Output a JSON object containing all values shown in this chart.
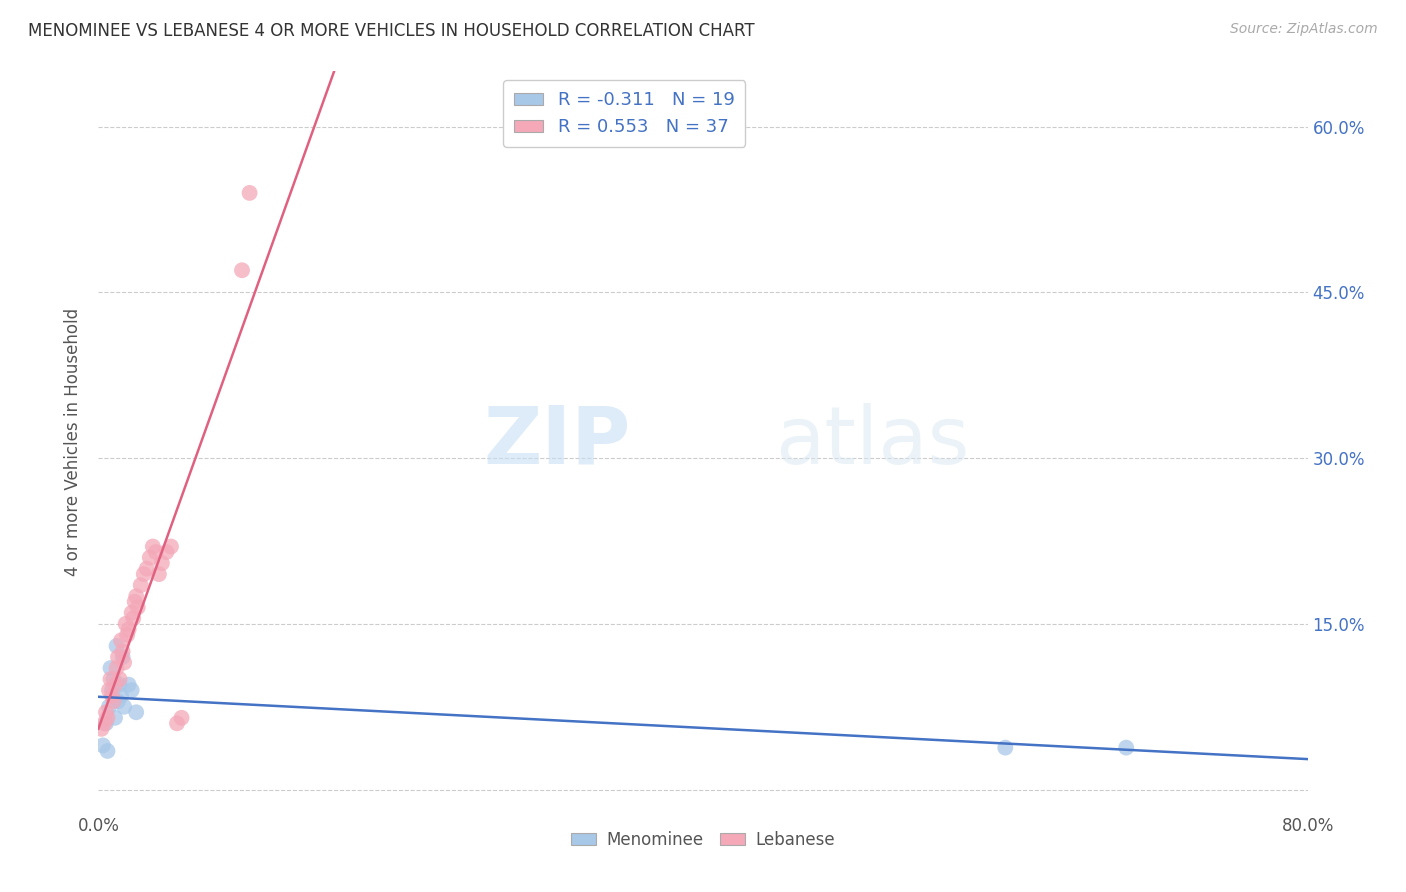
{
  "title": "MENOMINEE VS LEBANESE 4 OR MORE VEHICLES IN HOUSEHOLD CORRELATION CHART",
  "source": "Source: ZipAtlas.com",
  "ylabel": "4 or more Vehicles in Household",
  "xlim": [
    0.0,
    0.8
  ],
  "ylim": [
    -0.02,
    0.65
  ],
  "xticks": [
    0.0,
    0.1,
    0.2,
    0.3,
    0.4,
    0.5,
    0.6,
    0.7,
    0.8
  ],
  "xticklabels": [
    "0.0%",
    "",
    "",
    "",
    "",
    "",
    "",
    "",
    "80.0%"
  ],
  "yticks": [
    0.0,
    0.15,
    0.3,
    0.45,
    0.6
  ],
  "yticklabels_right": [
    "",
    "15.0%",
    "30.0%",
    "45.0%",
    "60.0%"
  ],
  "legend_label1": "R = -0.311   N = 19",
  "legend_label2": "R = 0.553   N = 37",
  "legend_bottom": [
    "Menominee",
    "Lebanese"
  ],
  "menominee_color": "#a8c8e8",
  "lebanese_color": "#f4a8b8",
  "menominee_line_color": "#4472c4",
  "lebanese_line_color": "#e06080",
  "watermark_zip": "ZIP",
  "watermark_atlas": "atlas",
  "menominee_x": [
    0.003,
    0.005,
    0.006,
    0.007,
    0.008,
    0.009,
    0.01,
    0.011,
    0.012,
    0.013,
    0.014,
    0.015,
    0.016,
    0.017,
    0.02,
    0.022,
    0.025,
    0.6,
    0.68
  ],
  "menominee_y": [
    0.04,
    0.06,
    0.035,
    0.075,
    0.11,
    0.09,
    0.1,
    0.065,
    0.13,
    0.08,
    0.095,
    0.085,
    0.12,
    0.075,
    0.095,
    0.09,
    0.07,
    0.038,
    0.038
  ],
  "lebanese_x": [
    0.002,
    0.004,
    0.005,
    0.006,
    0.007,
    0.008,
    0.009,
    0.01,
    0.011,
    0.012,
    0.013,
    0.014,
    0.015,
    0.016,
    0.017,
    0.018,
    0.019,
    0.02,
    0.022,
    0.023,
    0.024,
    0.025,
    0.026,
    0.028,
    0.03,
    0.032,
    0.034,
    0.036,
    0.038,
    0.04,
    0.042,
    0.045,
    0.048,
    0.052,
    0.055,
    0.095,
    0.1
  ],
  "lebanese_y": [
    0.055,
    0.06,
    0.07,
    0.065,
    0.09,
    0.1,
    0.085,
    0.08,
    0.095,
    0.11,
    0.12,
    0.1,
    0.135,
    0.125,
    0.115,
    0.15,
    0.14,
    0.145,
    0.16,
    0.155,
    0.17,
    0.175,
    0.165,
    0.185,
    0.195,
    0.2,
    0.21,
    0.22,
    0.215,
    0.195,
    0.205,
    0.215,
    0.22,
    0.06,
    0.065,
    0.47,
    0.54
  ],
  "grid_color": "#cccccc",
  "grid_style": "--",
  "tick_color": "#555555",
  "axis_label_color": "#555555"
}
